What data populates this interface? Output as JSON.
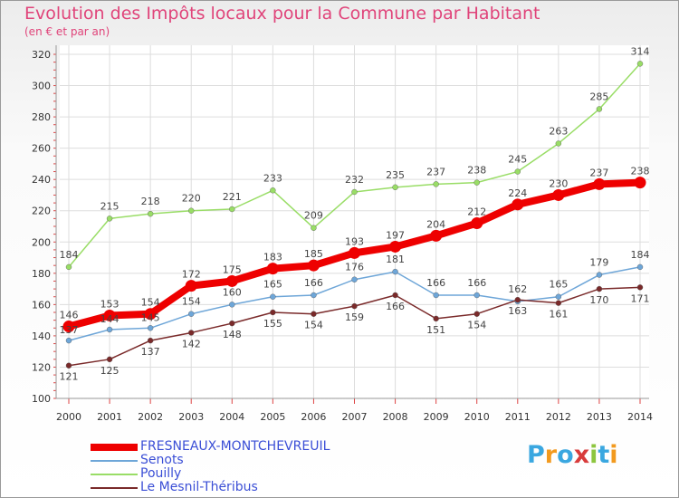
{
  "header": {
    "title": "Evolution des Impôts locaux pour la Commune par Habitant",
    "subtitle": "(en € et par an)"
  },
  "chart_data": {
    "type": "line",
    "title": "Evolution des Impôts locaux pour la Commune par Habitant",
    "ylabel": "(en € et par an)",
    "xlabel": "",
    "x": [
      "2000",
      "2001",
      "2002",
      "2003",
      "2004",
      "2005",
      "2006",
      "2007",
      "2008",
      "2009",
      "2010",
      "2011",
      "2012",
      "2013",
      "2014"
    ],
    "ylim": [
      100,
      320
    ],
    "yticks": [
      100,
      120,
      140,
      160,
      180,
      200,
      220,
      240,
      260,
      280,
      300,
      320
    ],
    "grid": true,
    "legend_position": "bottom-left",
    "series": [
      {
        "name": "FRESNEAUX-MONTCHEVREUIL",
        "color": "#ee0000",
        "values": [
          146,
          153,
          154,
          172,
          175,
          183,
          185,
          193,
          197,
          204,
          212,
          224,
          230,
          237,
          238
        ]
      },
      {
        "name": "Senots",
        "color": "#6ea6d8",
        "values": [
          137,
          144,
          145,
          154,
          160,
          165,
          166,
          176,
          181,
          166,
          166,
          162,
          165,
          179,
          184
        ]
      },
      {
        "name": "Pouilly",
        "color": "#99dd66",
        "values": [
          184,
          215,
          218,
          220,
          221,
          233,
          209,
          232,
          235,
          237,
          238,
          245,
          263,
          285,
          314
        ]
      },
      {
        "name": "Le Mesnil-Théribus",
        "color": "#7a2a2a",
        "values": [
          121,
          125,
          137,
          142,
          148,
          155,
          154,
          159,
          166,
          151,
          154,
          163,
          161,
          170,
          171
        ]
      }
    ]
  },
  "logo": {
    "letters": [
      "P",
      "r",
      "o",
      "x",
      "i",
      "t",
      "i"
    ],
    "colors": [
      "#3aa7e0",
      "#f29a1f",
      "#3aa7e0",
      "#d83b3b",
      "#8dc63f",
      "#3aa7e0",
      "#f29a1f"
    ]
  }
}
